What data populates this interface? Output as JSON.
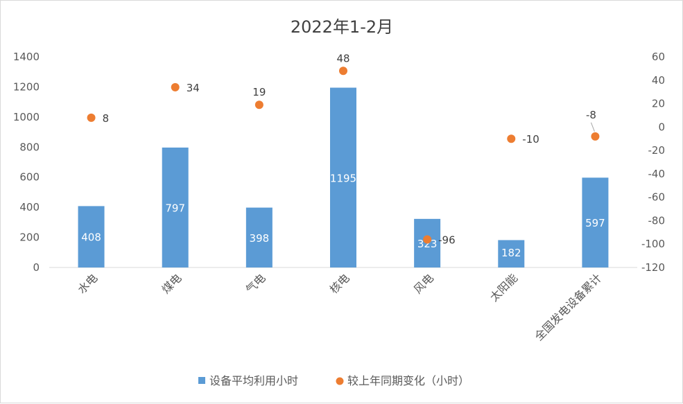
{
  "chart_data": {
    "type": "bar",
    "title": "2022年1-2月",
    "categories": [
      "水电",
      "煤电",
      "气电",
      "核电",
      "风电",
      "太阳能",
      "全国发电设备累计"
    ],
    "series": [
      {
        "name": "设备平均利用小时",
        "type": "bar",
        "axis": "left",
        "color": "#5b9bd5",
        "values": [
          408,
          797,
          398,
          1195,
          323,
          182,
          597
        ]
      },
      {
        "name": "较上年同期变化（小时）",
        "type": "scatter",
        "axis": "right",
        "color": "#ed7d31",
        "values": [
          8,
          34,
          19,
          48,
          -96,
          -10,
          -8
        ]
      }
    ],
    "y_left": {
      "min": 0,
      "max": 1400,
      "step": 200
    },
    "y_right": {
      "min": -120,
      "max": 60,
      "step": 20
    },
    "legend": "bottom",
    "grid": false
  }
}
